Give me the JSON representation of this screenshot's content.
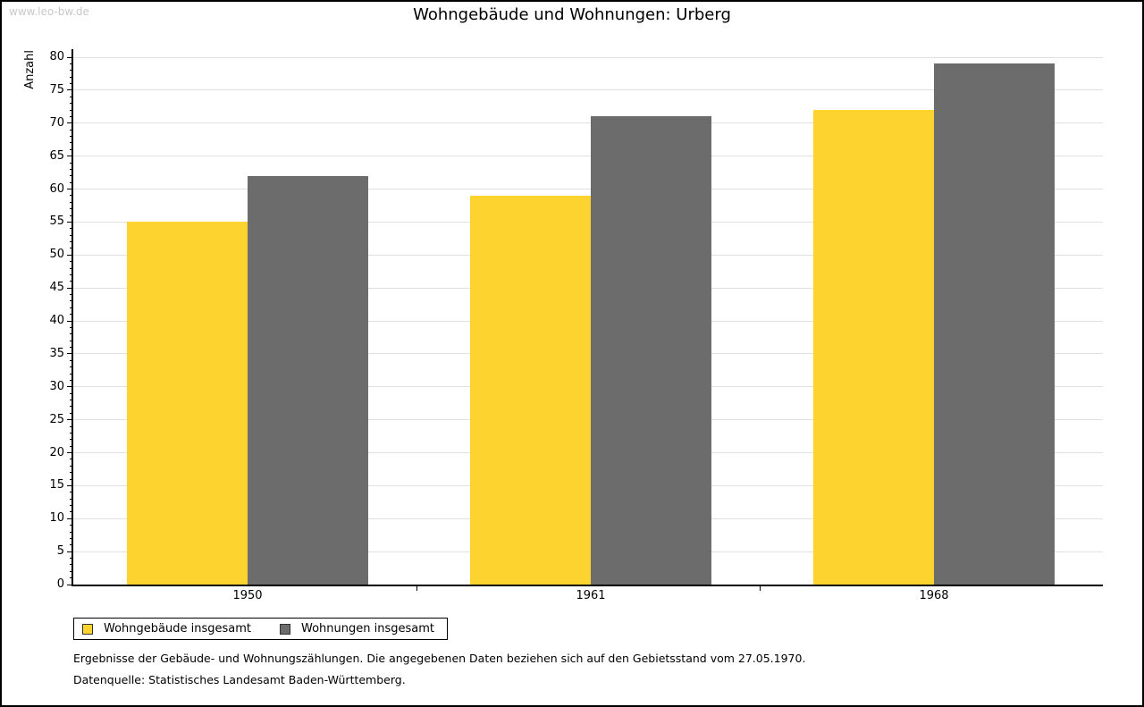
{
  "page": {
    "watermark": "www.leo-bw.de",
    "title": "Wohngebäude und Wohnungen: Urberg",
    "footnote1": "Ergebnisse der Gebäude- und Wohnungszählungen. Die angegebenen Daten beziehen sich auf den Gebietsstand vom 27.05.1970.",
    "footnote2": "Datenquelle: Statistisches Landesamt Baden-Württemberg."
  },
  "colors": {
    "series1": "#fcd32f",
    "series2": "#6c6c6c",
    "gridline": "#e0e0e0",
    "axis": "#000000",
    "watermark": "#c8c8c8"
  },
  "chart_data": {
    "type": "bar",
    "title": "Wohngebäude und Wohnungen: Urberg",
    "categories": [
      "1950",
      "1961",
      "1968"
    ],
    "series": [
      {
        "name": "Wohngebäude insgesamt",
        "color": "#fcd32f",
        "values": [
          55,
          59,
          72
        ]
      },
      {
        "name": "Wohnungen insgesamt",
        "color": "#6c6c6c",
        "values": [
          62,
          71,
          79
        ]
      }
    ],
    "xlabel": "",
    "ylabel": "Anzahl",
    "ylim": [
      0,
      80
    ],
    "ytick_major": 5,
    "ytick_minor": 1,
    "grid": true,
    "legend_position": "bottom-left"
  }
}
